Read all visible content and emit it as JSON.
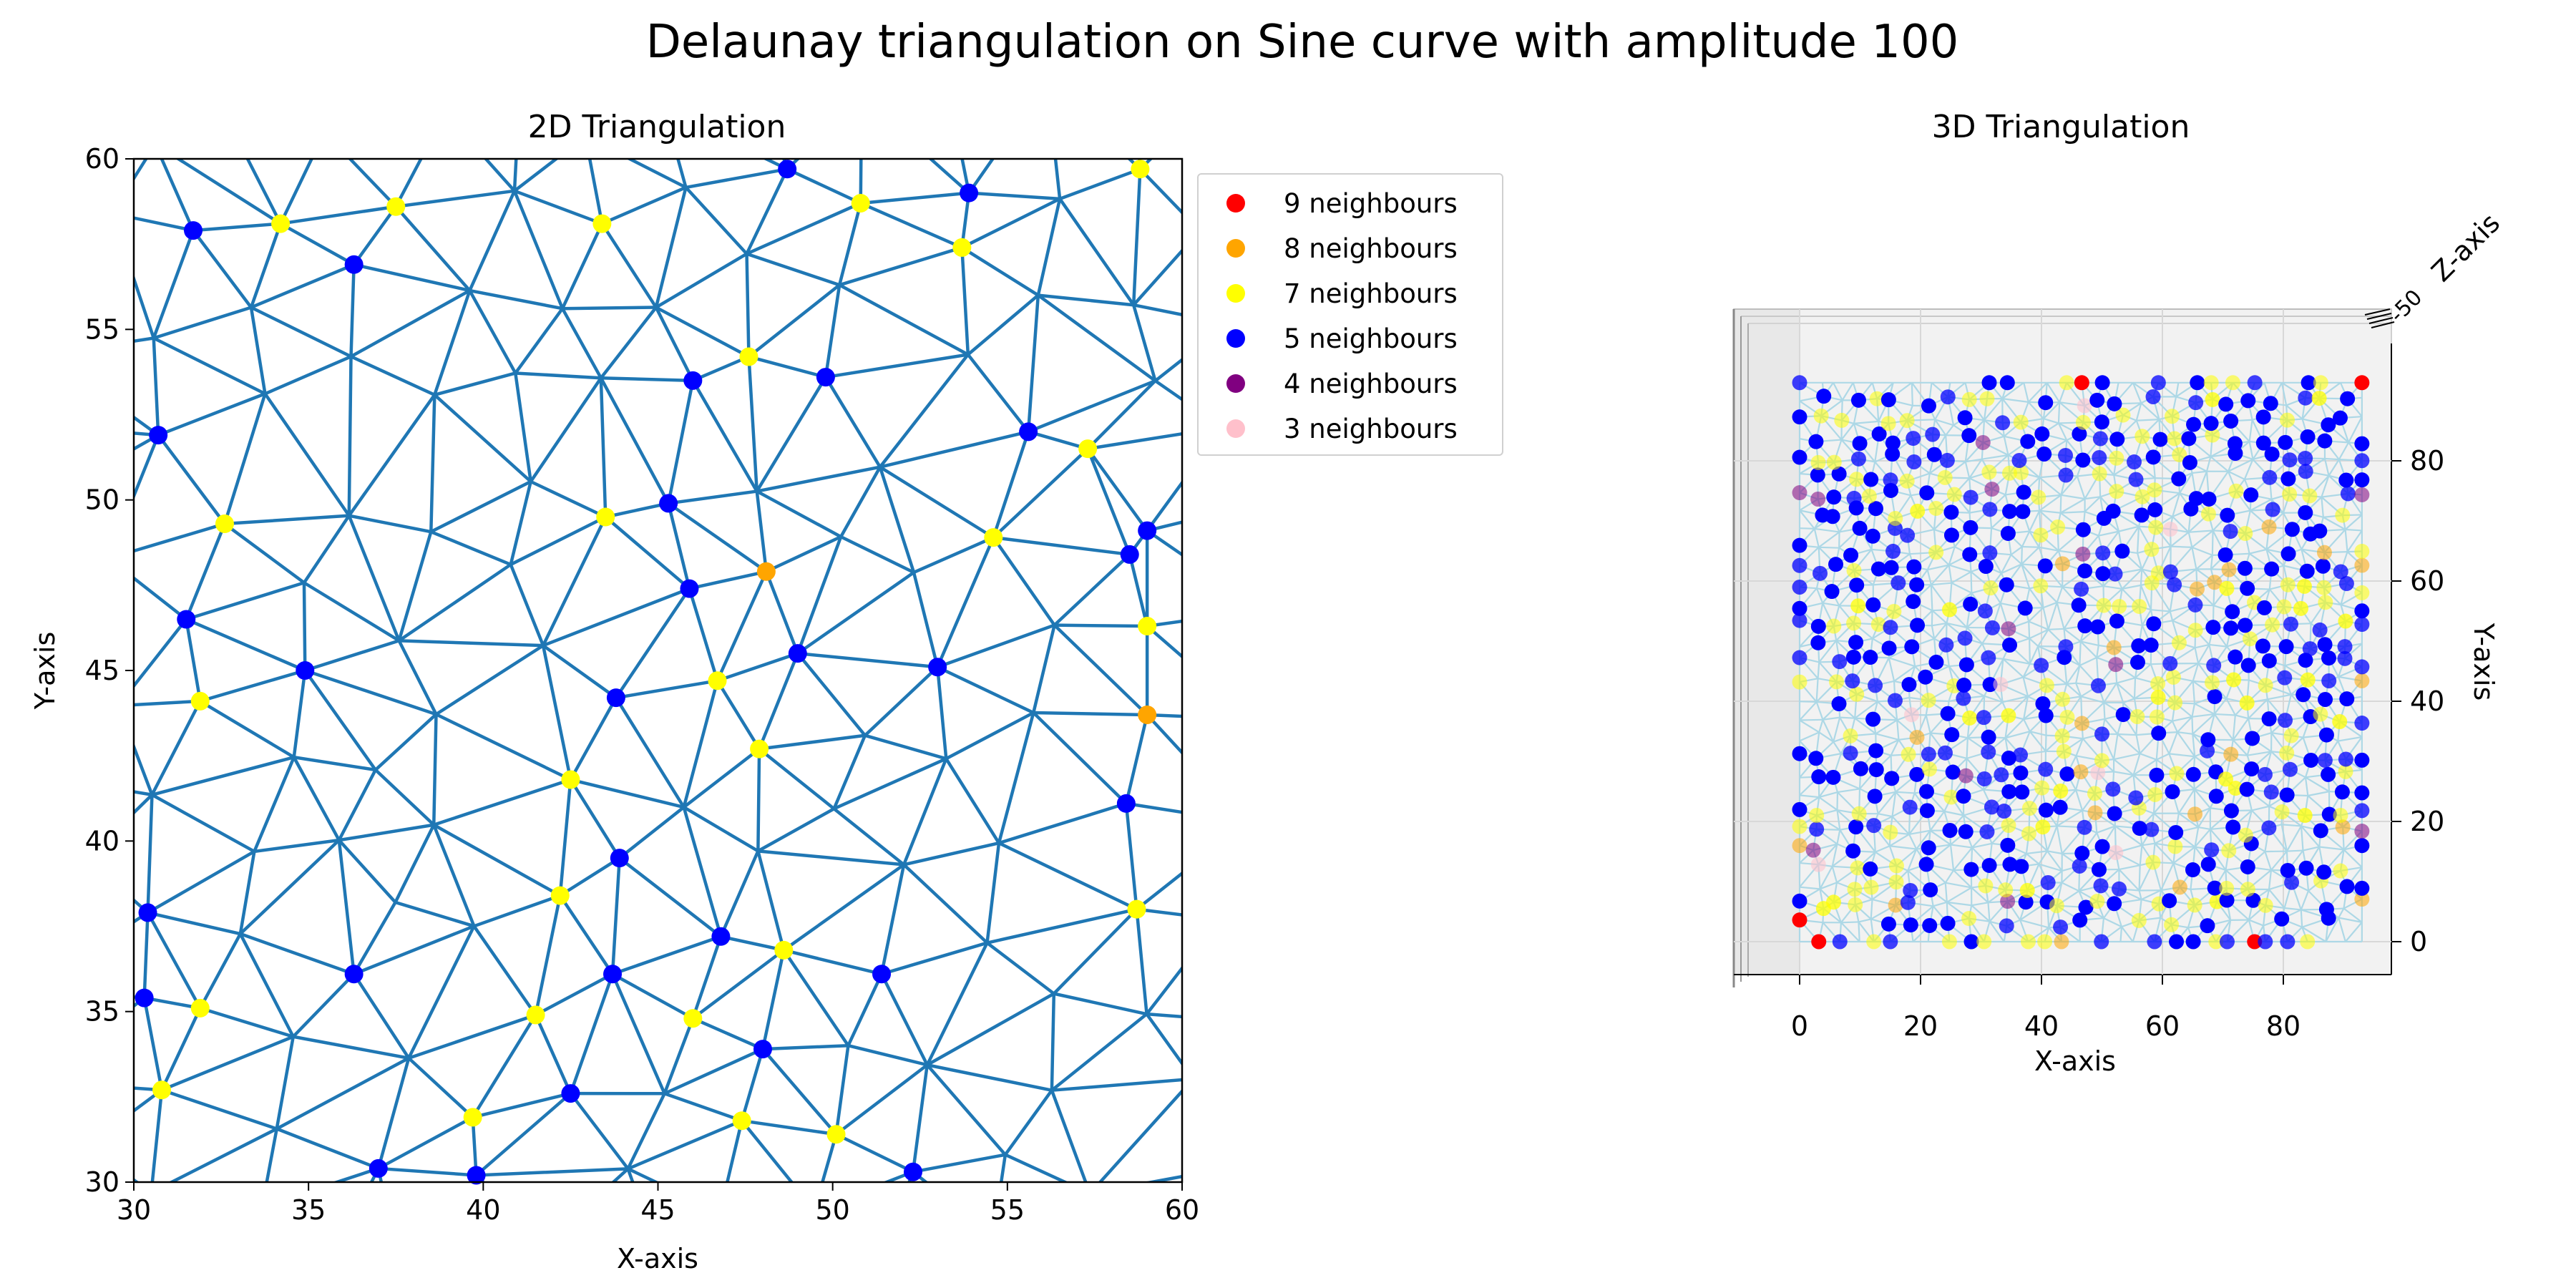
{
  "figure": {
    "suptitle": "Delaunay triangulation on Sine curve with amplitude 100"
  },
  "chart_data": [
    {
      "type": "scatter",
      "title": "2D Triangulation",
      "xlabel": "X-axis",
      "ylabel": "Y-axis",
      "xlim": [
        30,
        60
      ],
      "ylim": [
        30,
        60
      ],
      "xticks": [
        30,
        35,
        40,
        45,
        50,
        55,
        60
      ],
      "yticks": [
        30,
        35,
        40,
        45,
        50,
        55,
        60
      ],
      "grid": false,
      "edge_color": "#1f77b4",
      "legend": {
        "placement": "outside upper right",
        "entries": [
          {
            "label": "9 neighbours",
            "color": "#ff0000"
          },
          {
            "label": "8 neighbours",
            "color": "#ffa500"
          },
          {
            "label": "7 neighbours",
            "color": "#ffff00"
          },
          {
            "label": "5 neighbours",
            "color": "#0000ff"
          },
          {
            "label": "4 neighbours",
            "color": "#800080"
          },
          {
            "label": "3 neighbours",
            "color": "#ffc0cb"
          }
        ]
      },
      "series": [
        {
          "name": "7 neighbours",
          "color": "#ffff00",
          "points": [
            [
              34.2,
              58.1
            ],
            [
              37.5,
              58.6
            ],
            [
              43.4,
              58.1
            ],
            [
              50.8,
              58.7
            ],
            [
              53.7,
              57.4
            ],
            [
              58.8,
              59.7
            ],
            [
              47.6,
              54.2
            ],
            [
              57.3,
              51.5
            ],
            [
              32.6,
              49.3
            ],
            [
              43.5,
              49.5
            ],
            [
              54.6,
              48.9
            ],
            [
              59.0,
              46.3
            ],
            [
              31.9,
              44.1
            ],
            [
              46.7,
              44.7
            ],
            [
              47.9,
              42.7
            ],
            [
              42.5,
              41.8
            ],
            [
              42.2,
              38.4
            ],
            [
              58.7,
              38.0
            ],
            [
              48.6,
              36.8
            ],
            [
              31.9,
              35.1
            ],
            [
              41.5,
              34.9
            ],
            [
              46.0,
              34.8
            ],
            [
              30.8,
              32.7
            ],
            [
              39.7,
              31.9
            ],
            [
              47.4,
              31.8
            ],
            [
              50.1,
              31.4
            ]
          ]
        },
        {
          "name": "8 neighbours",
          "color": "#ffa500",
          "points": [
            [
              48.1,
              47.9
            ],
            [
              59.0,
              43.7
            ]
          ]
        },
        {
          "name": "5 neighbours",
          "color": "#0000ff",
          "points": [
            [
              31.7,
              57.9
            ],
            [
              36.3,
              56.9
            ],
            [
              48.7,
              59.7
            ],
            [
              53.9,
              59.0
            ],
            [
              46.0,
              53.5
            ],
            [
              49.8,
              53.6
            ],
            [
              30.7,
              51.9
            ],
            [
              55.6,
              52.0
            ],
            [
              45.3,
              49.9
            ],
            [
              58.5,
              48.4
            ],
            [
              59.0,
              49.1
            ],
            [
              45.9,
              47.4
            ],
            [
              31.5,
              46.5
            ],
            [
              34.9,
              45.0
            ],
            [
              49.0,
              45.5
            ],
            [
              53.0,
              45.1
            ],
            [
              43.8,
              44.2
            ],
            [
              58.4,
              41.1
            ],
            [
              43.9,
              39.5
            ],
            [
              30.4,
              37.9
            ],
            [
              46.8,
              37.2
            ],
            [
              36.3,
              36.1
            ],
            [
              43.7,
              36.1
            ],
            [
              51.4,
              36.1
            ],
            [
              30.3,
              35.4
            ],
            [
              48.0,
              33.9
            ],
            [
              42.5,
              32.6
            ],
            [
              37.0,
              30.4
            ],
            [
              39.8,
              30.2
            ],
            [
              52.3,
              30.3
            ]
          ]
        }
      ]
    },
    {
      "type": "scatter",
      "title": "3D Triangulation",
      "xlabel": "X-axis",
      "ylabel": "Y-axis",
      "zlabel": "Z-axis",
      "xticks": [
        0,
        20,
        40,
        60,
        80
      ],
      "yticks": [
        0,
        20,
        40,
        60,
        80
      ],
      "view": "top-down",
      "edge_color": "#add8e6"
    }
  ]
}
